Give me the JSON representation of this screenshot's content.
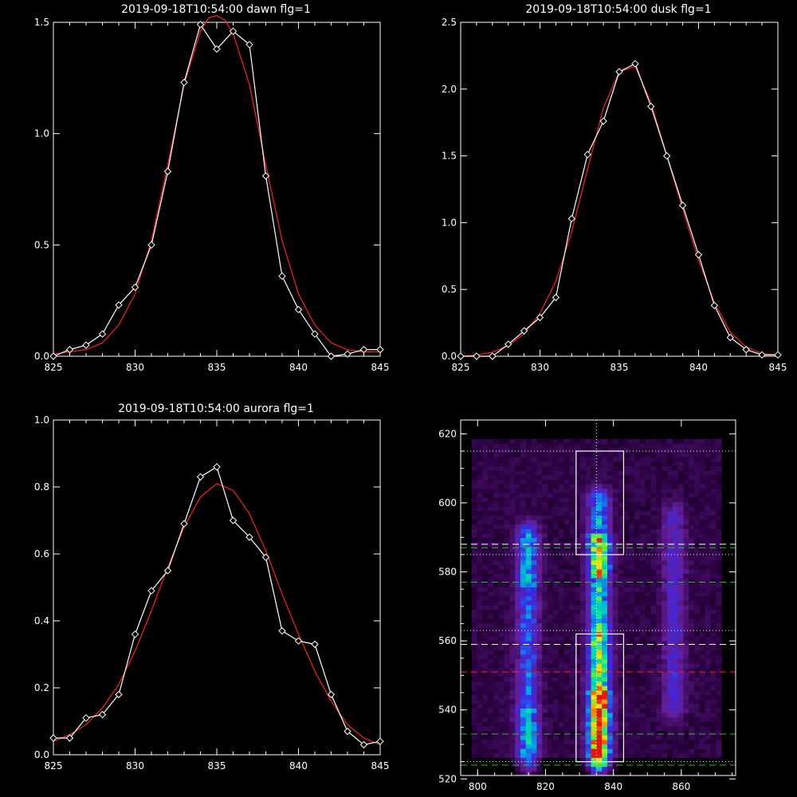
{
  "chart_data": [
    {
      "type": "line",
      "title": "2019-09-18T10:54:00 dawn flg=1",
      "xlim": [
        825,
        845
      ],
      "ylim": [
        0,
        1.5
      ],
      "xticks": [
        "825",
        "830",
        "835",
        "840",
        "845"
      ],
      "yticks": [
        "0.0",
        "0.5",
        "1.0",
        "1.5"
      ],
      "series": [
        {
          "x": [
            825,
            826,
            827,
            828,
            829,
            830,
            831,
            832,
            833,
            834,
            835,
            836,
            837,
            838,
            839,
            840,
            841,
            842,
            843,
            844,
            845
          ],
          "values": [
            0.0,
            0.03,
            0.05,
            0.1,
            0.23,
            0.31,
            0.5,
            0.83,
            1.23,
            1.49,
            1.38,
            1.46,
            1.4,
            0.81,
            0.36,
            0.21,
            0.1,
            0.0,
            0.01,
            0.03,
            0.03
          ]
        },
        {
          "x": [
            825,
            826,
            827,
            828,
            829,
            830,
            831,
            832,
            833,
            834,
            834.5,
            835,
            835.5,
            836,
            837,
            838,
            839,
            840,
            841,
            842,
            843,
            844,
            845
          ],
          "values": [
            0.01,
            0.02,
            0.03,
            0.06,
            0.14,
            0.28,
            0.52,
            0.86,
            1.22,
            1.46,
            1.52,
            1.53,
            1.51,
            1.45,
            1.22,
            0.86,
            0.52,
            0.28,
            0.14,
            0.06,
            0.03,
            0.02,
            0.02
          ]
        }
      ]
    },
    {
      "type": "line",
      "title": "2019-09-18T10:54:00 dusk flg=1",
      "xlim": [
        825,
        845
      ],
      "ylim": [
        0,
        2.5
      ],
      "xticks": [
        "825",
        "830",
        "835",
        "840",
        "845"
      ],
      "yticks": [
        "0.0",
        "0.5",
        "1.0",
        "1.5",
        "2.0",
        "2.5"
      ],
      "series": [
        {
          "x": [
            825,
            826,
            827,
            828,
            829,
            830,
            831,
            832,
            833,
            834,
            835,
            836,
            837,
            838,
            839,
            840,
            841,
            842,
            843,
            844,
            845
          ],
          "values": [
            0.0,
            0.0,
            0.0,
            0.09,
            0.19,
            0.29,
            0.44,
            1.03,
            1.51,
            1.76,
            2.13,
            2.19,
            1.87,
            1.5,
            1.13,
            0.76,
            0.38,
            0.14,
            0.05,
            0.01,
            0.01
          ]
        },
        {
          "x": [
            825,
            826,
            827,
            828,
            829,
            830,
            831,
            832,
            833,
            834,
            835,
            836,
            837,
            838,
            839,
            840,
            841,
            842,
            843,
            844,
            845
          ],
          "values": [
            0.0,
            0.01,
            0.03,
            0.08,
            0.17,
            0.32,
            0.56,
            0.93,
            1.4,
            1.86,
            2.13,
            2.17,
            1.9,
            1.5,
            1.1,
            0.72,
            0.4,
            0.18,
            0.07,
            0.02,
            0.01
          ]
        }
      ]
    },
    {
      "type": "line",
      "title": "2019-09-18T10:54:00 aurora flg=1",
      "xlim": [
        825,
        845
      ],
      "ylim": [
        0,
        1.0
      ],
      "xticks": [
        "825",
        "830",
        "835",
        "840",
        "845"
      ],
      "yticks": [
        "0.0",
        "0.2",
        "0.4",
        "0.6",
        "0.8",
        "1.0"
      ],
      "series": [
        {
          "x": [
            825,
            826,
            827,
            828,
            829,
            830,
            831,
            832,
            833,
            834,
            835,
            836,
            837,
            838,
            839,
            840,
            841,
            842,
            843,
            844,
            845
          ],
          "values": [
            0.05,
            0.05,
            0.11,
            0.12,
            0.18,
            0.36,
            0.49,
            0.55,
            0.69,
            0.83,
            0.86,
            0.7,
            0.65,
            0.59,
            0.37,
            0.34,
            0.33,
            0.18,
            0.07,
            0.03,
            0.04
          ]
        },
        {
          "x": [
            825,
            826,
            827,
            828,
            829,
            830,
            831,
            832,
            833,
            834,
            835,
            836,
            837,
            838,
            839,
            840,
            841,
            842,
            843,
            844,
            845
          ],
          "values": [
            0.04,
            0.06,
            0.09,
            0.14,
            0.21,
            0.31,
            0.43,
            0.56,
            0.68,
            0.77,
            0.81,
            0.79,
            0.72,
            0.61,
            0.48,
            0.36,
            0.25,
            0.16,
            0.09,
            0.05,
            0.03
          ]
        }
      ]
    },
    {
      "type": "heatmap",
      "xlim": [
        795,
        876
      ],
      "ylim": [
        521,
        624
      ],
      "xticks": [
        "800",
        "820",
        "840",
        "860"
      ],
      "yticks": [
        "520",
        "540",
        "560",
        "580",
        "600",
        "620"
      ],
      "colors": {
        "obs": "#ffffff",
        "fit": "#ff2020",
        "green": "#20c020",
        "bg": "#000000"
      },
      "columns": [
        {
          "x": 814,
          "ymin": 525,
          "ymax": 590,
          "peak": 0.55
        },
        {
          "x": 835,
          "ymin": 525,
          "ymax": 600,
          "peak": 1.0
        },
        {
          "x": 857,
          "ymin": 540,
          "ymax": 595,
          "peak": 0.25
        }
      ],
      "boxes": [
        {
          "x0": 829,
          "x1": 843,
          "y0": 585,
          "y1": 615
        },
        {
          "x0": 829,
          "x1": 843,
          "y0": 525,
          "y1": 562
        }
      ],
      "vline_dotted": 835,
      "hlines_white_dotted": [
        615,
        585,
        563,
        525
      ],
      "hlines_white_dashed": [
        588,
        559
      ],
      "hlines_red_dashed": [
        551
      ],
      "hlines_green_dashed": [
        587,
        577,
        533,
        524
      ]
    }
  ]
}
